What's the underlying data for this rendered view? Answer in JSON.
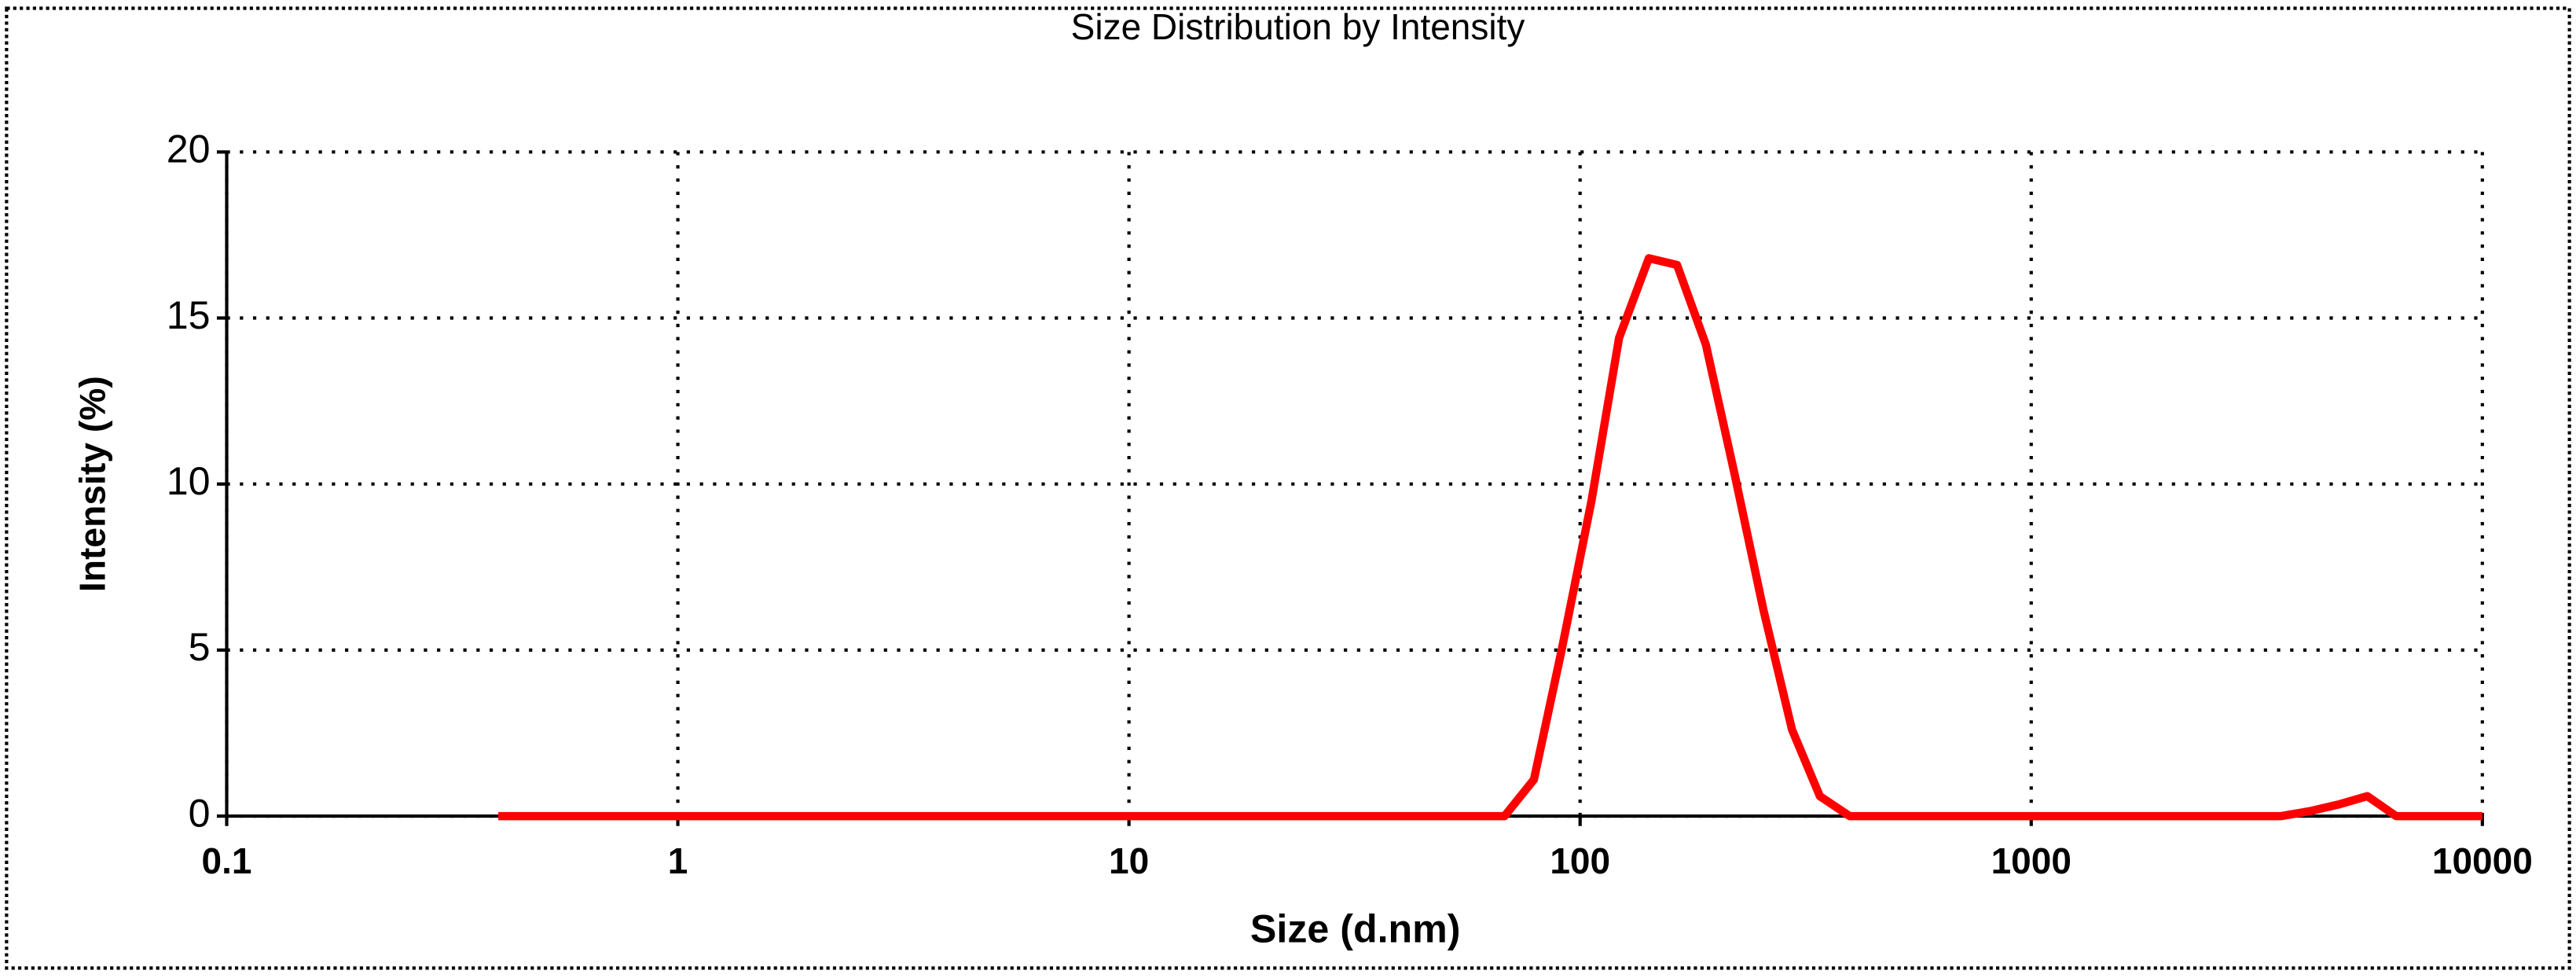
{
  "chart_data": {
    "type": "line",
    "title": "Size Distribution by Intensity",
    "x_label": "Size (d.nm)",
    "y_label": "Intensity (%)",
    "x_scale": "log",
    "grid": true,
    "xlim": [
      0.1,
      10000
    ],
    "xticks": [
      0.1,
      1,
      10,
      100,
      1000,
      10000
    ],
    "ylim": [
      0,
      20
    ],
    "yticks": [
      0,
      5,
      10,
      15,
      20
    ],
    "series": [
      {
        "color": "#ff0000",
        "x": [
          0.4,
          68,
          79,
          91,
          106,
          122,
          142,
          164,
          190,
          220,
          255,
          295,
          340,
          396,
          3580,
          4150,
          4800,
          5560,
          6440,
          10000
        ],
        "values": [
          0,
          0,
          1.1,
          5,
          9.5,
          14.4,
          16.8,
          16.6,
          14.2,
          10.3,
          6.2,
          2.6,
          0.6,
          0,
          0,
          0.15,
          0.35,
          0.6,
          0,
          0
        ]
      }
    ]
  }
}
